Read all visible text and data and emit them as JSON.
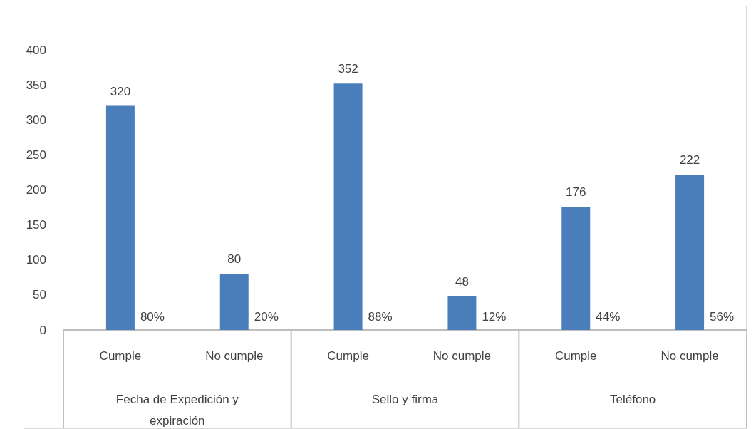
{
  "chart_data": {
    "type": "bar",
    "categories": [
      "Cumple",
      "No cumple",
      "Cumple",
      "No cumple",
      "Cumple",
      "No cumple"
    ],
    "values": [
      320,
      80,
      352,
      48,
      176,
      222
    ],
    "color": "#4a7ebb",
    "data_labels": true,
    "ylim": [
      0,
      400
    ],
    "yticks": [
      0,
      50,
      100,
      150,
      200,
      250,
      300,
      350,
      400
    ],
    "grid": false,
    "annotations": [
      "80%",
      "20%",
      "88%",
      "12%",
      "44%",
      "56%",
      "Fecha de Expedición y\nexpiración",
      "Sello y firma",
      "Teléfono"
    ]
  }
}
